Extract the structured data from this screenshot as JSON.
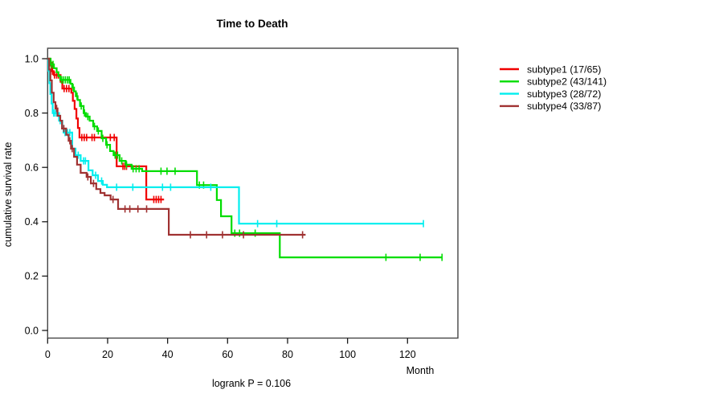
{
  "chart_data": {
    "type": "line",
    "subtype_chart": "kaplan-meier-step",
    "title": "Time to Death",
    "xlabel": "Month",
    "ylabel": "cumulative survival rate",
    "annotation": "logrank P = 0.106",
    "xlim": [
      0,
      137
    ],
    "ylim": [
      0,
      1.04
    ],
    "xticks": [
      0,
      20,
      40,
      60,
      80,
      100,
      120
    ],
    "yticks": [
      "0.0",
      "0.2",
      "0.4",
      "0.6",
      "0.8",
      "1.0"
    ],
    "grid": false,
    "legend_position": "right-outside",
    "series": [
      {
        "name": "subtype1 (17/65)",
        "color": "#f00000",
        "end_month": 38.8,
        "steps": [
          [
            0,
            1.0
          ],
          [
            0.8,
            0.985
          ],
          [
            1.4,
            0.954
          ],
          [
            2.0,
            0.94
          ],
          [
            4.3,
            0.915
          ],
          [
            4.9,
            0.89
          ],
          [
            7.9,
            0.875
          ],
          [
            8.4,
            0.845
          ],
          [
            9.0,
            0.815
          ],
          [
            9.6,
            0.78
          ],
          [
            10.1,
            0.745
          ],
          [
            10.6,
            0.71
          ],
          [
            23.0,
            0.604
          ],
          [
            32.9,
            0.482
          ]
        ],
        "censor_months": [
          1.0,
          1.6,
          2.3,
          3.0,
          3.6,
          5.5,
          6.3,
          7.1,
          11.4,
          12.2,
          13.0,
          14.8,
          15.6,
          20.9,
          22.2,
          25.1,
          25.7,
          26.3,
          35.4,
          36.2,
          37.0,
          37.8
        ]
      },
      {
        "name": "subtype2 (43/141)",
        "color": "#00dd00",
        "end_month": 131.5,
        "steps": [
          [
            0,
            1.0
          ],
          [
            1.0,
            0.979
          ],
          [
            2.1,
            0.965
          ],
          [
            3.0,
            0.95
          ],
          [
            3.6,
            0.936
          ],
          [
            4.2,
            0.922
          ],
          [
            7.6,
            0.908
          ],
          [
            8.2,
            0.894
          ],
          [
            8.8,
            0.88
          ],
          [
            9.4,
            0.862
          ],
          [
            10.0,
            0.848
          ],
          [
            10.8,
            0.826
          ],
          [
            12.0,
            0.8
          ],
          [
            12.8,
            0.787
          ],
          [
            14.0,
            0.772
          ],
          [
            15.2,
            0.751
          ],
          [
            16.5,
            0.734
          ],
          [
            18.0,
            0.707
          ],
          [
            19.5,
            0.683
          ],
          [
            20.8,
            0.66
          ],
          [
            22.0,
            0.645
          ],
          [
            24.0,
            0.624
          ],
          [
            26.0,
            0.61
          ],
          [
            28.0,
            0.595
          ],
          [
            31.5,
            0.586
          ],
          [
            49.8,
            0.535
          ],
          [
            56.4,
            0.48
          ],
          [
            57.8,
            0.42
          ],
          [
            61.3,
            0.358
          ],
          [
            77.4,
            0.269
          ]
        ],
        "censor_months": [
          1.2,
          1.8,
          4.6,
          5.2,
          5.9,
          6.6,
          7.2,
          8.5,
          9.8,
          11.2,
          12.3,
          13.4,
          15.6,
          16.9,
          18.4,
          19.8,
          22.5,
          23.3,
          24.7,
          26.3,
          28.5,
          29.5,
          30.5,
          37.8,
          39.8,
          42.5,
          50.6,
          52.0,
          62.4,
          64.0,
          69.2,
          112.8,
          124.2,
          131.5
        ]
      },
      {
        "name": "subtype3 (28/72)",
        "color": "#00eeee",
        "end_month": 125.3,
        "steps": [
          [
            0,
            1.0
          ],
          [
            0.3,
            0.955
          ],
          [
            0.6,
            0.91
          ],
          [
            0.9,
            0.87
          ],
          [
            1.3,
            0.835
          ],
          [
            1.7,
            0.8
          ],
          [
            3.8,
            0.772
          ],
          [
            4.9,
            0.743
          ],
          [
            5.3,
            0.728
          ],
          [
            8.2,
            0.669
          ],
          [
            9.3,
            0.645
          ],
          [
            11.0,
            0.624
          ],
          [
            13.6,
            0.589
          ],
          [
            15.0,
            0.571
          ],
          [
            16.8,
            0.55
          ],
          [
            18.4,
            0.536
          ],
          [
            19.8,
            0.527
          ],
          [
            63.8,
            0.393
          ]
        ],
        "censor_months": [
          2.0,
          2.5,
          3.1,
          4.2,
          5.8,
          6.6,
          7.4,
          10.2,
          12.0,
          12.6,
          16.0,
          18.0,
          23.0,
          28.4,
          38.3,
          41.0,
          54.4,
          70.0,
          76.4,
          125.3
        ]
      },
      {
        "name": "subtype4 (33/87)",
        "color": "#a03232",
        "end_month": 86.0,
        "steps": [
          [
            0,
            1.0
          ],
          [
            0.5,
            0.96
          ],
          [
            0.9,
            0.92
          ],
          [
            1.4,
            0.875
          ],
          [
            2.0,
            0.84
          ],
          [
            2.6,
            0.817
          ],
          [
            3.3,
            0.79
          ],
          [
            4.2,
            0.772
          ],
          [
            4.8,
            0.743
          ],
          [
            6.2,
            0.72
          ],
          [
            7.0,
            0.698
          ],
          [
            7.8,
            0.669
          ],
          [
            8.8,
            0.639
          ],
          [
            9.8,
            0.61
          ],
          [
            11.0,
            0.58
          ],
          [
            13.0,
            0.565
          ],
          [
            14.4,
            0.541
          ],
          [
            16.2,
            0.52
          ],
          [
            17.6,
            0.506
          ],
          [
            19.0,
            0.497
          ],
          [
            21.0,
            0.482
          ],
          [
            23.5,
            0.447
          ],
          [
            40.4,
            0.352
          ]
        ],
        "censor_months": [
          3.0,
          5.4,
          7.4,
          8.2,
          13.4,
          15.3,
          21.8,
          25.8,
          27.4,
          30.1,
          33.0,
          47.6,
          53.0,
          58.3,
          65.3,
          85.0
        ]
      }
    ]
  },
  "layout_colors": {
    "box_stroke": "#454545",
    "tick_stroke": "#1a1a1a"
  }
}
